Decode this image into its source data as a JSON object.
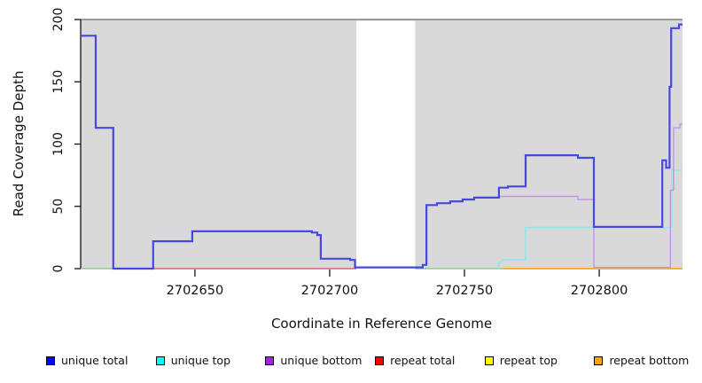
{
  "chart_data": {
    "type": "line",
    "title": "",
    "xlabel": "Coordinate in Reference Genome",
    "ylabel": "Read Coverage Depth",
    "xlim": [
      2702607.6,
      2702830.9
    ],
    "ylim": [
      0,
      200
    ],
    "xticks": [
      2702650,
      2702700,
      2702750,
      2702800
    ],
    "xtick_labels": [
      "2702650",
      "2702700",
      "2702750",
      "2702800"
    ],
    "yticks": [
      0,
      50,
      100,
      150,
      200
    ],
    "ytick_labels": [
      "0",
      "50",
      "100",
      "150",
      "200"
    ],
    "background": "#d9d9d9",
    "grid": "off",
    "mask_region": {
      "x0": 2702709.9,
      "x1": 2702731.7,
      "color": "#ffffff"
    },
    "series": [
      {
        "name": "repeat total",
        "color": "#db6077",
        "width": 1.4,
        "segments": [
          [
            2702634.5,
            2702709.9,
            0
          ]
        ]
      },
      {
        "name": "repeat top",
        "color": "#8fcb8f",
        "width": 1.4,
        "segments": [
          [
            2702607.6,
            2702619.7,
            0
          ],
          [
            2702731.7,
            2702764.5,
            0
          ]
        ]
      },
      {
        "name": "repeat bottom",
        "color": "#ffa51c",
        "width": 1.8,
        "segments": [
          [
            2702764.5,
            2702830.9,
            0
          ]
        ]
      },
      {
        "name": "unique top",
        "color": "#8fe9e9",
        "width": 1.6,
        "points": [
          [
            2702762.8,
            0
          ],
          [
            2702762.8,
            5
          ],
          [
            2702763.8,
            7
          ],
          [
            2702772.7,
            33
          ],
          [
            2702826.9,
            79
          ]
        ]
      },
      {
        "name": "unique bottom",
        "color": "#c694e6",
        "width": 1.4,
        "points": [
          [
            2702607.6,
            187
          ],
          [
            2702613.2,
            113
          ],
          [
            2702619.7,
            0
          ],
          [
            2702634.5,
            22
          ],
          [
            2702649,
            30
          ],
          [
            2702693.4,
            29
          ],
          [
            2702695.4,
            27
          ],
          [
            2702696.7,
            8
          ],
          [
            2702707.6,
            7
          ],
          [
            2702709.4,
            1
          ],
          [
            2702734.5,
            3
          ],
          [
            2702735.9,
            51
          ],
          [
            2702739.8,
            52.5
          ],
          [
            2702744.7,
            54
          ],
          [
            2702749.3,
            55.5
          ],
          [
            2702753.6,
            57
          ],
          [
            2702762.8,
            58
          ],
          [
            2702792.1,
            55.5
          ],
          [
            2702798,
            1
          ],
          [
            2702826.4,
            63
          ],
          [
            2702827.6,
            113
          ],
          [
            2702829.9,
            116
          ]
        ]
      },
      {
        "name": "unique total",
        "color": "#4649e0",
        "width": 2.2,
        "points": [
          [
            2702607.6,
            187
          ],
          [
            2702613.2,
            113
          ],
          [
            2702619.7,
            0
          ],
          [
            2702634.5,
            22
          ],
          [
            2702649,
            30
          ],
          [
            2702693.4,
            29
          ],
          [
            2702695.4,
            27
          ],
          [
            2702696.7,
            8
          ],
          [
            2702707.6,
            7
          ],
          [
            2702709.4,
            1
          ],
          [
            2702734.5,
            3
          ],
          [
            2702735.9,
            51
          ],
          [
            2702739.8,
            52.5
          ],
          [
            2702744.7,
            54
          ],
          [
            2702749.3,
            55.5
          ],
          [
            2702753.6,
            57
          ],
          [
            2702762.8,
            65
          ],
          [
            2702766.1,
            66
          ],
          [
            2702772.7,
            91
          ],
          [
            2702792.1,
            89
          ],
          [
            2702798,
            33.5
          ],
          [
            2702823.4,
            87
          ],
          [
            2702824.8,
            81
          ],
          [
            2702826.1,
            146
          ],
          [
            2702826.7,
            193
          ],
          [
            2702829.6,
            196
          ]
        ]
      }
    ],
    "legend": [
      {
        "label": "unique total",
        "color": "#0000ff"
      },
      {
        "label": "unique top",
        "color": "#00ffff"
      },
      {
        "label": "unique bottom",
        "color": "#a020f0"
      },
      {
        "label": "repeat total",
        "color": "#ff0000"
      },
      {
        "label": "repeat top",
        "color": "#ffff00"
      },
      {
        "label": "repeat bottom",
        "color": "#ffa500"
      }
    ],
    "legend_position": "bottom"
  }
}
